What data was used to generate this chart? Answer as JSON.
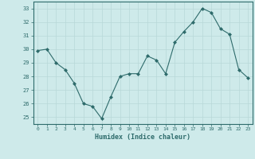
{
  "x": [
    0,
    1,
    2,
    3,
    4,
    5,
    6,
    7,
    8,
    9,
    10,
    11,
    12,
    13,
    14,
    15,
    16,
    17,
    18,
    19,
    20,
    21,
    22,
    23
  ],
  "y": [
    29.9,
    30.0,
    29.0,
    28.5,
    27.5,
    26.0,
    25.8,
    24.9,
    26.5,
    28.0,
    28.2,
    28.2,
    29.5,
    29.2,
    28.2,
    30.5,
    31.3,
    32.0,
    33.0,
    32.7,
    31.5,
    31.1,
    28.5,
    27.9
  ],
  "xlabel": "Humidex (Indice chaleur)",
  "xlim": [
    -0.5,
    23.5
  ],
  "ylim": [
    24.5,
    33.5
  ],
  "yticks": [
    25,
    26,
    27,
    28,
    29,
    30,
    31,
    32,
    33
  ],
  "xticks": [
    0,
    1,
    2,
    3,
    4,
    5,
    6,
    7,
    8,
    9,
    10,
    11,
    12,
    13,
    14,
    15,
    16,
    17,
    18,
    19,
    20,
    21,
    22,
    23
  ],
  "line_color": "#2e6b6b",
  "marker_color": "#2e6b6b",
  "bg_color": "#ceeaea",
  "grid_color": "#b8d8d8",
  "border_color": "#2e6b6b",
  "xlabel_color": "#2e6b6b",
  "tick_color": "#2e6b6b"
}
